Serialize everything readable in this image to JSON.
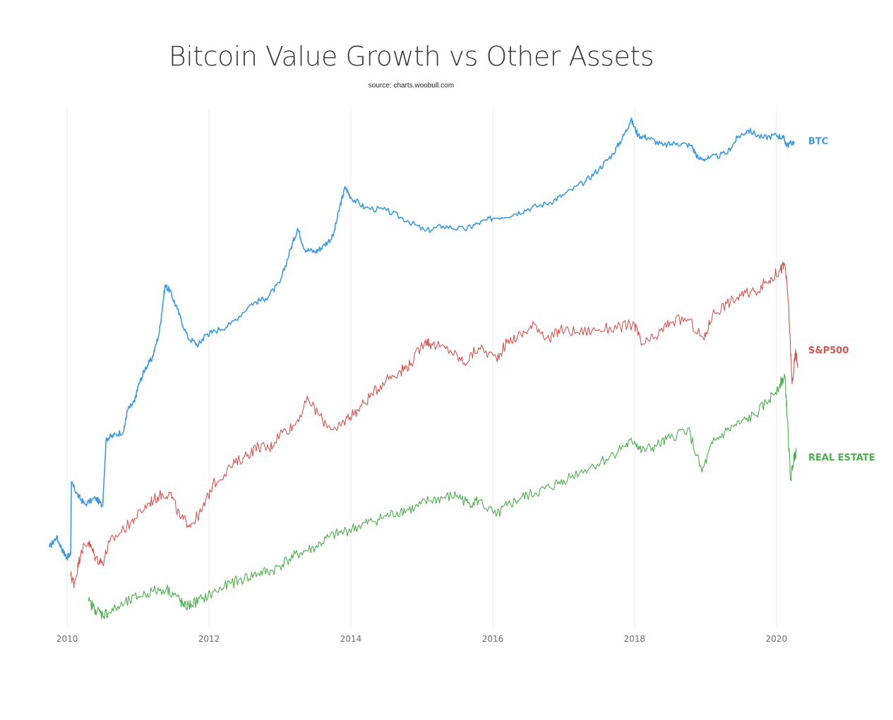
{
  "chart_data": {
    "type": "line",
    "title": "Bitcoin Value Growth vs Other Assets",
    "subtitle": "source: charts.woobull.com",
    "xlabel": "",
    "ylabel": "",
    "xlim": [
      2009.75,
      2020.3
    ],
    "ylim": [
      0,
      100
    ],
    "y_scale": "log-indexed",
    "grid": {
      "x": true,
      "y": false
    },
    "x_ticks": [
      "2010",
      "2012",
      "2014",
      "2016",
      "2018",
      "2020"
    ],
    "series": [
      {
        "name": "BTC",
        "color": "#3b9ae1",
        "points": [
          [
            2009.75,
            15.5
          ],
          [
            2009.85,
            17.5
          ],
          [
            2009.95,
            14.5
          ],
          [
            2010.0,
            13.5
          ],
          [
            2010.05,
            14.2
          ],
          [
            2010.06,
            28.0
          ],
          [
            2010.15,
            25.5
          ],
          [
            2010.25,
            23.8
          ],
          [
            2010.4,
            25.0
          ],
          [
            2010.5,
            23.5
          ],
          [
            2010.55,
            36.5
          ],
          [
            2010.65,
            37.0
          ],
          [
            2010.8,
            38.0
          ],
          [
            2010.85,
            42.0
          ],
          [
            2010.95,
            43.5
          ],
          [
            2011.0,
            46.5
          ],
          [
            2011.1,
            50.0
          ],
          [
            2011.2,
            52.0
          ],
          [
            2011.3,
            57.0
          ],
          [
            2011.38,
            66.0
          ],
          [
            2011.45,
            65.0
          ],
          [
            2011.55,
            61.5
          ],
          [
            2011.7,
            56.0
          ],
          [
            2011.85,
            54.5
          ],
          [
            2011.95,
            56.5
          ],
          [
            2012.05,
            57.0
          ],
          [
            2012.3,
            58.5
          ],
          [
            2012.6,
            62.5
          ],
          [
            2012.8,
            63.5
          ],
          [
            2013.0,
            66.5
          ],
          [
            2013.15,
            73.0
          ],
          [
            2013.25,
            77.0
          ],
          [
            2013.35,
            73.0
          ],
          [
            2013.5,
            72.5
          ],
          [
            2013.6,
            73.5
          ],
          [
            2013.75,
            75.5
          ],
          [
            2013.85,
            81.5
          ],
          [
            2013.92,
            85.0
          ],
          [
            2014.0,
            83.0
          ],
          [
            2014.2,
            81.0
          ],
          [
            2014.5,
            80.5
          ],
          [
            2014.8,
            78.5
          ],
          [
            2015.05,
            76.5
          ],
          [
            2015.3,
            77.5
          ],
          [
            2015.6,
            76.8
          ],
          [
            2015.8,
            78.0
          ],
          [
            2016.0,
            79.0
          ],
          [
            2016.3,
            79.8
          ],
          [
            2016.5,
            80.8
          ],
          [
            2016.8,
            82.0
          ],
          [
            2017.0,
            83.5
          ],
          [
            2017.3,
            86.0
          ],
          [
            2017.5,
            88.5
          ],
          [
            2017.7,
            91.5
          ],
          [
            2017.85,
            95.0
          ],
          [
            2017.95,
            98.0
          ],
          [
            2018.05,
            95.0
          ],
          [
            2018.2,
            94.5
          ],
          [
            2018.4,
            93.0
          ],
          [
            2018.6,
            93.5
          ],
          [
            2018.8,
            93.0
          ],
          [
            2018.9,
            90.5
          ],
          [
            2019.05,
            90.5
          ],
          [
            2019.3,
            91.5
          ],
          [
            2019.45,
            94.5
          ],
          [
            2019.6,
            96.0
          ],
          [
            2019.8,
            94.5
          ],
          [
            2020.0,
            95.0
          ],
          [
            2020.1,
            94.5
          ],
          [
            2020.15,
            93.0
          ],
          [
            2020.25,
            93.8
          ]
        ]
      },
      {
        "name": "S&P500",
        "color": "#d9534f",
        "points": [
          [
            2010.05,
            10.0
          ],
          [
            2010.1,
            8.5
          ],
          [
            2010.2,
            15.0
          ],
          [
            2010.3,
            16.5
          ],
          [
            2010.4,
            13.5
          ],
          [
            2010.5,
            12.5
          ],
          [
            2010.6,
            16.5
          ],
          [
            2010.8,
            19.0
          ],
          [
            2010.95,
            21.0
          ],
          [
            2011.15,
            24.0
          ],
          [
            2011.3,
            25.5
          ],
          [
            2011.45,
            26.0
          ],
          [
            2011.6,
            21.0
          ],
          [
            2011.75,
            20.0
          ],
          [
            2011.9,
            22.5
          ],
          [
            2012.05,
            27.5
          ],
          [
            2012.3,
            31.0
          ],
          [
            2012.5,
            33.0
          ],
          [
            2012.7,
            35.0
          ],
          [
            2012.85,
            34.5
          ],
          [
            2013.0,
            37.5
          ],
          [
            2013.2,
            39.0
          ],
          [
            2013.4,
            44.0
          ],
          [
            2013.6,
            40.0
          ],
          [
            2013.8,
            38.0
          ],
          [
            2013.95,
            40.5
          ],
          [
            2014.1,
            42.0
          ],
          [
            2014.3,
            45.0
          ],
          [
            2014.5,
            48.0
          ],
          [
            2014.7,
            49.5
          ],
          [
            2014.85,
            51.0
          ],
          [
            2015.05,
            55.5
          ],
          [
            2015.15,
            54.5
          ],
          [
            2015.4,
            53.5
          ],
          [
            2015.6,
            51.0
          ],
          [
            2015.8,
            54.0
          ],
          [
            2016.05,
            52.0
          ],
          [
            2016.2,
            55.0
          ],
          [
            2016.4,
            56.5
          ],
          [
            2016.6,
            58.5
          ],
          [
            2016.8,
            55.5
          ],
          [
            2016.95,
            57.5
          ],
          [
            2017.2,
            57.0
          ],
          [
            2017.5,
            57.5
          ],
          [
            2017.8,
            58.0
          ],
          [
            2018.0,
            58.5
          ],
          [
            2018.1,
            54.5
          ],
          [
            2018.3,
            56.0
          ],
          [
            2018.5,
            59.0
          ],
          [
            2018.75,
            59.5
          ],
          [
            2018.98,
            55.5
          ],
          [
            2019.1,
            60.5
          ],
          [
            2019.3,
            62.5
          ],
          [
            2019.5,
            64.0
          ],
          [
            2019.7,
            65.0
          ],
          [
            2019.9,
            67.0
          ],
          [
            2020.05,
            69.0
          ],
          [
            2020.12,
            70.0
          ],
          [
            2020.17,
            62.5
          ],
          [
            2020.22,
            47.0
          ],
          [
            2020.27,
            53.0
          ],
          [
            2020.3,
            51.0
          ]
        ]
      },
      {
        "name": "REAL ESTATE",
        "color": "#4cae4c",
        "points": [
          [
            2010.3,
            5.0
          ],
          [
            2010.4,
            3.5
          ],
          [
            2010.5,
            2.5
          ],
          [
            2010.6,
            3.0
          ],
          [
            2010.8,
            4.5
          ],
          [
            2011.0,
            6.0
          ],
          [
            2011.2,
            7.0
          ],
          [
            2011.4,
            7.5
          ],
          [
            2011.55,
            6.0
          ],
          [
            2011.65,
            4.0
          ],
          [
            2011.75,
            4.5
          ],
          [
            2011.9,
            5.5
          ],
          [
            2012.1,
            7.0
          ],
          [
            2012.3,
            8.5
          ],
          [
            2012.5,
            9.5
          ],
          [
            2012.7,
            10.5
          ],
          [
            2012.9,
            11.0
          ],
          [
            2013.1,
            13.0
          ],
          [
            2013.3,
            14.5
          ],
          [
            2013.5,
            15.5
          ],
          [
            2013.7,
            17.5
          ],
          [
            2013.9,
            18.5
          ],
          [
            2014.1,
            19.5
          ],
          [
            2014.3,
            20.5
          ],
          [
            2014.5,
            21.5
          ],
          [
            2014.7,
            22.5
          ],
          [
            2014.9,
            23.0
          ],
          [
            2015.1,
            24.5
          ],
          [
            2015.3,
            25.0
          ],
          [
            2015.5,
            25.5
          ],
          [
            2015.65,
            24.0
          ],
          [
            2015.8,
            24.5
          ],
          [
            2016.05,
            21.5
          ],
          [
            2016.2,
            23.5
          ],
          [
            2016.4,
            25.0
          ],
          [
            2016.6,
            26.0
          ],
          [
            2016.8,
            27.0
          ],
          [
            2017.0,
            28.5
          ],
          [
            2017.3,
            30.5
          ],
          [
            2017.6,
            32.5
          ],
          [
            2017.85,
            35.0
          ],
          [
            2018.0,
            36.0
          ],
          [
            2018.1,
            34.0
          ],
          [
            2018.3,
            35.0
          ],
          [
            2018.5,
            36.5
          ],
          [
            2018.75,
            38.5
          ],
          [
            2018.95,
            30.0
          ],
          [
            2019.1,
            35.5
          ],
          [
            2019.3,
            38.0
          ],
          [
            2019.5,
            39.5
          ],
          [
            2019.7,
            41.0
          ],
          [
            2019.9,
            44.0
          ],
          [
            2020.05,
            47.0
          ],
          [
            2020.12,
            48.5
          ],
          [
            2020.15,
            41.0
          ],
          [
            2020.2,
            28.5
          ],
          [
            2020.25,
            33.0
          ],
          [
            2020.28,
            34.0
          ]
        ]
      }
    ]
  }
}
